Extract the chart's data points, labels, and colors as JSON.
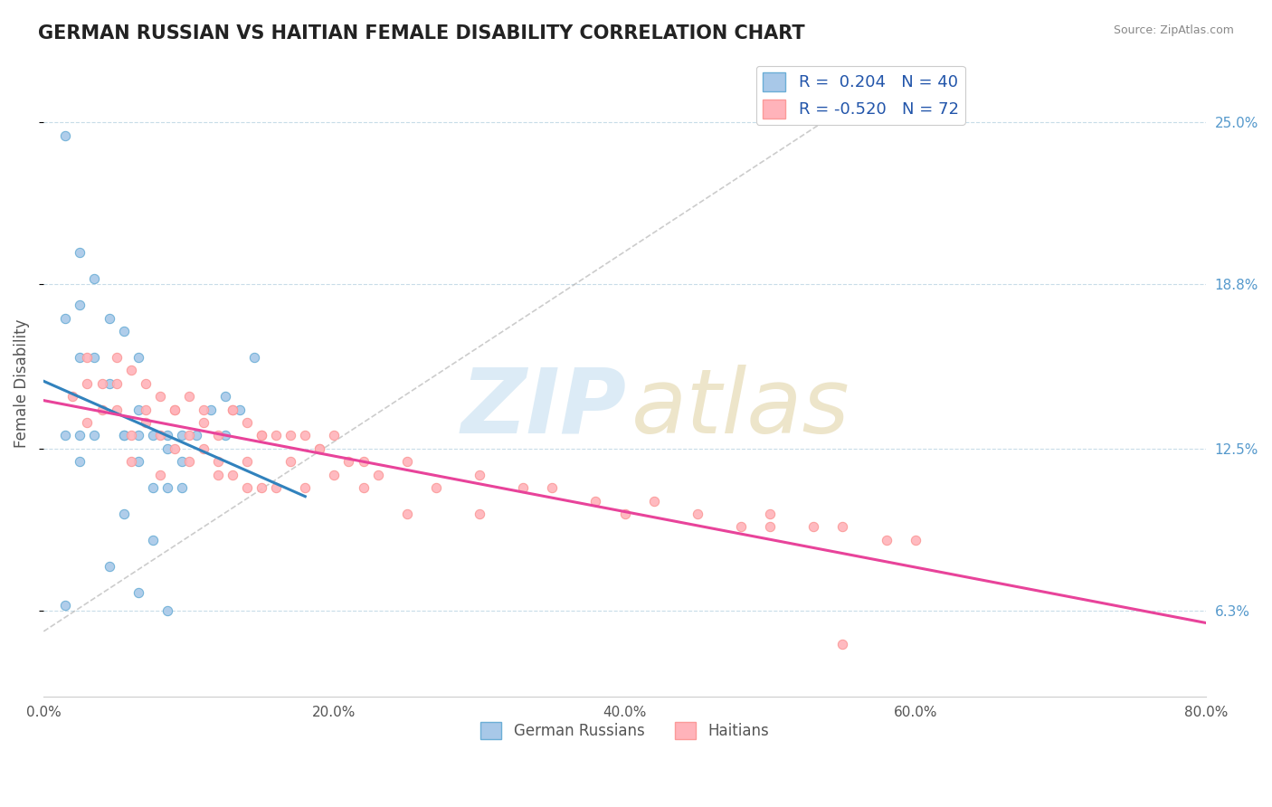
{
  "title": "GERMAN RUSSIAN VS HAITIAN FEMALE DISABILITY CORRELATION CHART",
  "source_text": "Source: ZipAtlas.com",
  "ylabel": "Female Disability",
  "x_tick_labels": [
    "0.0%",
    "20.0%",
    "40.0%",
    "60.0%",
    "80.0%"
  ],
  "x_tick_values": [
    0,
    20,
    40,
    60,
    80
  ],
  "y_tick_labels": [
    "6.3%",
    "12.5%",
    "18.8%",
    "25.0%"
  ],
  "y_tick_values": [
    6.3,
    12.5,
    18.8,
    25.0
  ],
  "xlim": [
    0,
    80
  ],
  "ylim": [
    3,
    27
  ],
  "legend_r1": "R =  0.204",
  "legend_n1": "N = 40",
  "legend_r2": "R = -0.520",
  "legend_n2": "N = 72",
  "legend_label1": "German Russians",
  "legend_label2": "Haitians",
  "blue_color": "#6baed6",
  "pink_color": "#fb9a99",
  "blue_fill": "#a8c8e8",
  "pink_fill": "#ffb3ba",
  "trend_blue": "#3182bd",
  "trend_pink": "#e8439a",
  "title_fontsize": 15,
  "axis_label_fontsize": 12,
  "tick_fontsize": 11,
  "blue_x": [
    1.5,
    1.5,
    2.5,
    2.5,
    2.5,
    3.5,
    3.5,
    4.5,
    4.5,
    5.5,
    5.5,
    5.5,
    6.5,
    6.5,
    6.5,
    6.5,
    7.5,
    7.5,
    8.5,
    8.5,
    8.5,
    9.5,
    9.5,
    9.5,
    10.5,
    11.5,
    12.5,
    12.5,
    13.5,
    14.5,
    1.5,
    1.5,
    2.5,
    2.5,
    3.5,
    4.5,
    5.5,
    6.5,
    7.5,
    8.5
  ],
  "blue_y": [
    24.5,
    17.5,
    20.0,
    18.0,
    16.0,
    19.0,
    16.0,
    17.5,
    15.0,
    17.0,
    13.0,
    10.0,
    16.0,
    14.0,
    13.0,
    12.0,
    13.0,
    11.0,
    13.0,
    12.5,
    11.0,
    13.0,
    12.0,
    11.0,
    13.0,
    14.0,
    14.5,
    13.0,
    14.0,
    16.0,
    13.0,
    6.5,
    13.0,
    12.0,
    13.0,
    8.0,
    13.0,
    7.0,
    9.0,
    6.3
  ],
  "pink_x": [
    2,
    3,
    3,
    4,
    5,
    5,
    6,
    6,
    7,
    7,
    8,
    8,
    9,
    9,
    10,
    10,
    11,
    11,
    12,
    12,
    13,
    13,
    14,
    14,
    15,
    15,
    16,
    17,
    18,
    19,
    20,
    21,
    22,
    23,
    25,
    27,
    30,
    33,
    35,
    38,
    40,
    42,
    45,
    48,
    50,
    53,
    55,
    58,
    60,
    3,
    4,
    5,
    6,
    7,
    8,
    9,
    10,
    11,
    12,
    13,
    14,
    15,
    16,
    17,
    18,
    19,
    20,
    22,
    25,
    30,
    50,
    55
  ],
  "pink_y": [
    14.5,
    16.0,
    13.5,
    15.0,
    16.0,
    14.0,
    15.5,
    13.0,
    15.0,
    13.5,
    14.5,
    13.0,
    14.0,
    12.5,
    14.5,
    13.0,
    14.0,
    12.5,
    13.0,
    12.0,
    14.0,
    11.5,
    13.5,
    12.0,
    13.0,
    11.0,
    13.0,
    12.0,
    13.0,
    12.5,
    13.0,
    12.0,
    12.0,
    11.5,
    12.0,
    11.0,
    11.5,
    11.0,
    11.0,
    10.5,
    10.0,
    10.5,
    10.0,
    9.5,
    10.0,
    9.5,
    9.5,
    9.0,
    9.0,
    15.0,
    14.0,
    15.0,
    12.0,
    14.0,
    11.5,
    14.0,
    12.0,
    13.5,
    11.5,
    14.0,
    11.0,
    13.0,
    11.0,
    13.0,
    11.0,
    12.5,
    11.5,
    11.0,
    10.0,
    10.0,
    9.5,
    5.0
  ]
}
